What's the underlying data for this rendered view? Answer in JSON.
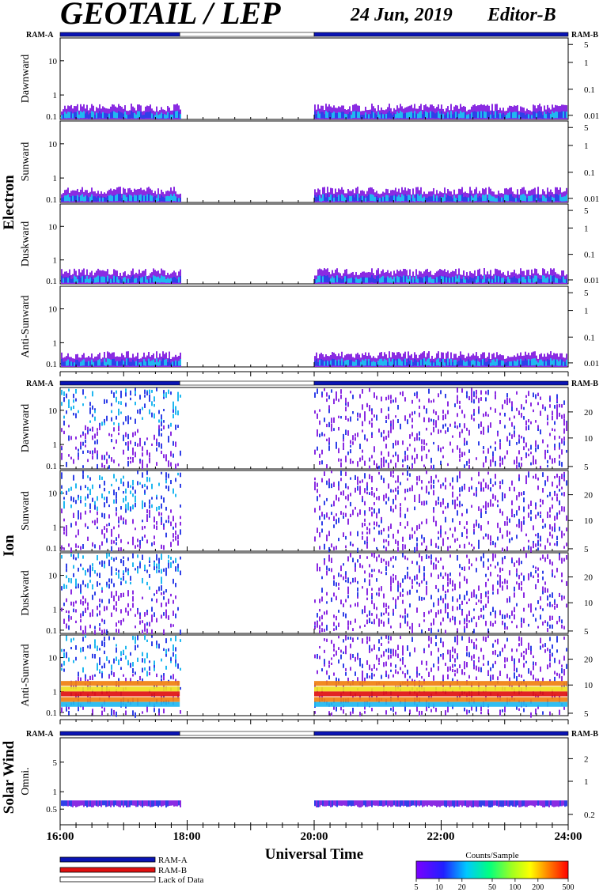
{
  "header": {
    "title": "GEOTAIL / LEP",
    "date": "24 Jun, 2019",
    "editor": "Editor-B"
  },
  "ram_labels": {
    "left": "RAM-A",
    "right": "RAM-B"
  },
  "groups": [
    {
      "label": "Electron"
    },
    {
      "label": "Ion"
    },
    {
      "label": "Solar Wind"
    }
  ],
  "x_axis": {
    "label": "Universal Time",
    "ticks": [
      "16:00",
      "18:00",
      "20:00",
      "22:00",
      "24:00"
    ]
  },
  "legend": {
    "items": [
      "RAM-A",
      "RAM-B",
      "Lack of Data"
    ],
    "colorbar_title": "Counts/Sample",
    "colorbar_ticks": [
      "5",
      "10",
      "20",
      "50",
      "100",
      "200",
      "500"
    ]
  },
  "colors": {
    "ram_a": "#0a14b4",
    "ram_b": "#e01010",
    "purple": "#8a2be2",
    "blue": "#3040e8",
    "cyan": "#20b8f0",
    "green": "#30e080",
    "yellow": "#f0e020",
    "orange": "#f08010",
    "red": "#e01010"
  },
  "chart_data": {
    "type": "heatmap",
    "time_range_ut": [
      "16:00",
      "24:00"
    ],
    "data_gap_ut": [
      "17:53",
      "20:00"
    ],
    "panels": [
      {
        "name": "Dawnward",
        "group": "Electron",
        "left_ticks": [
          "10",
          "1",
          "0.1"
        ],
        "right_ticks": [
          "5",
          "1",
          "0.1",
          "0.01"
        ]
      },
      {
        "name": "Sunward",
        "group": "Electron",
        "left_ticks": [
          "10",
          "1",
          "0.1"
        ],
        "right_ticks": [
          "5",
          "1",
          "0.1",
          "0.01"
        ]
      },
      {
        "name": "Duskward",
        "group": "Electron",
        "left_ticks": [
          "10",
          "1",
          "0.1"
        ],
        "right_ticks": [
          "5",
          "1",
          "0.1",
          "0.01"
        ]
      },
      {
        "name": "Anti-Sunward",
        "group": "Electron",
        "left_ticks": [
          "10",
          "1",
          "0.1"
        ],
        "right_ticks": [
          "5",
          "1",
          "0.1",
          "0.01"
        ]
      },
      {
        "name": "Dawnward",
        "group": "Ion",
        "left_ticks": [
          "10",
          "1",
          "0.1"
        ],
        "right_ticks": [
          "20",
          "10",
          "5"
        ]
      },
      {
        "name": "Sunward",
        "group": "Ion",
        "left_ticks": [
          "10",
          "1",
          "0.1"
        ],
        "right_ticks": [
          "20",
          "10",
          "5"
        ]
      },
      {
        "name": "Duskward",
        "group": "Ion",
        "left_ticks": [
          "10",
          "1",
          "0.1"
        ],
        "right_ticks": [
          "20",
          "10",
          "5"
        ]
      },
      {
        "name": "Anti-Sunward",
        "group": "Ion",
        "left_ticks": [
          "10",
          "1",
          "0.1"
        ],
        "right_ticks": [
          "20",
          "10",
          "5"
        ]
      },
      {
        "name": "Omni.",
        "group": "Solar Wind",
        "left_ticks": [
          "5",
          "1",
          "0.5"
        ],
        "right_ticks": [
          "2",
          "1",
          "0.2"
        ]
      }
    ],
    "colorbar_range": [
      5,
      500
    ],
    "colorbar_scale": "log"
  }
}
